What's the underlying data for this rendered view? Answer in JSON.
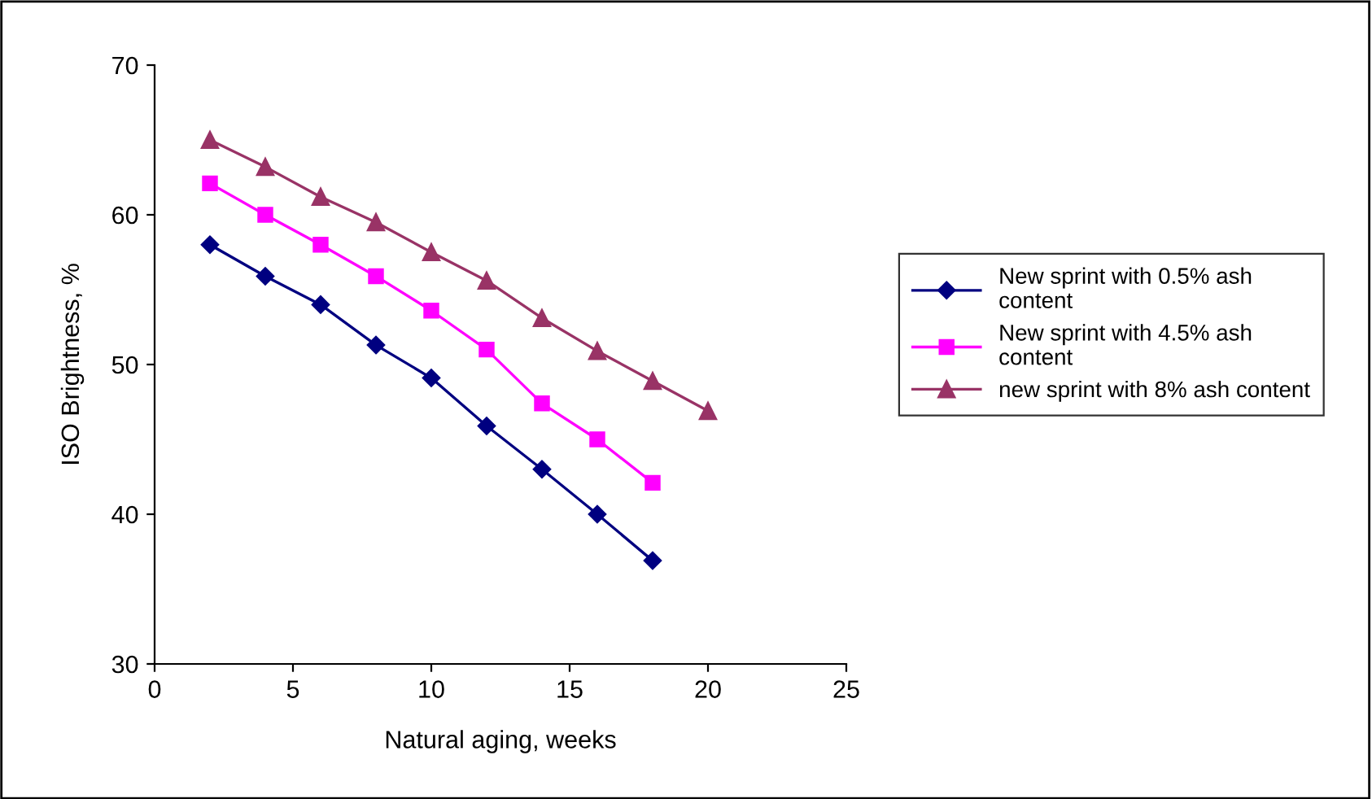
{
  "chart_data": {
    "type": "line",
    "xlabel": "Natural aging, weeks",
    "ylabel": "ISO Brightness, %",
    "xlim": [
      0,
      25
    ],
    "xticks": [
      0,
      5,
      10,
      15,
      20,
      25
    ],
    "ylim": [
      30,
      70
    ],
    "yticks": [
      30,
      40,
      50,
      60,
      70
    ],
    "grid": false,
    "legend": "right",
    "line_style": "solid",
    "series": [
      {
        "name": "New sprint with 0.5% ash content",
        "color": "#000080",
        "marker": "diamond",
        "x": [
          2,
          4,
          6,
          8,
          10,
          12,
          14,
          16,
          18
        ],
        "values": [
          58.0,
          55.9,
          54.0,
          51.3,
          49.1,
          45.9,
          43.0,
          40.0,
          36.9
        ]
      },
      {
        "name": "New sprint with 4.5% ash content",
        "color": "#ff00ff",
        "marker": "square",
        "x": [
          2,
          4,
          6,
          8,
          10,
          12,
          14,
          16,
          18
        ],
        "values": [
          62.1,
          60.0,
          58.0,
          55.9,
          53.6,
          51.0,
          47.4,
          45.0,
          42.1
        ]
      },
      {
        "name": "new sprint with 8% ash content",
        "color": "#993366",
        "marker": "triangle",
        "x": [
          2,
          4,
          6,
          8,
          10,
          12,
          14,
          16,
          18,
          20
        ],
        "values": [
          65.0,
          63.2,
          61.2,
          59.5,
          57.5,
          55.6,
          53.1,
          50.9,
          48.9,
          46.9
        ]
      }
    ]
  }
}
